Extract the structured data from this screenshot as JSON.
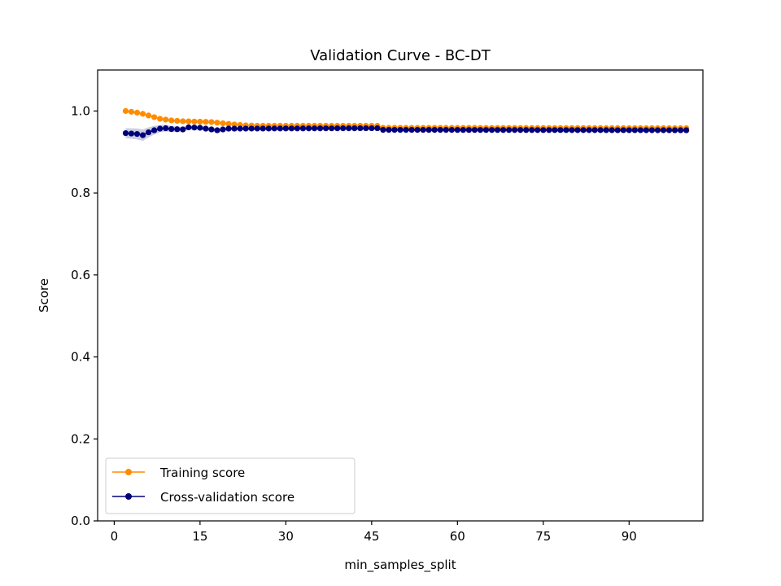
{
  "chart_data": {
    "type": "line",
    "title": "Validation Curve - BC-DT",
    "xlabel": "min_samples_split",
    "ylabel": "Score",
    "xlim": [
      -2.9,
      102.9
    ],
    "ylim": [
      0.0,
      1.1
    ],
    "xticks": [
      0,
      15,
      30,
      45,
      60,
      75,
      90
    ],
    "yticks": [
      0.0,
      0.2,
      0.4,
      0.6,
      0.8,
      1.0
    ],
    "xtick_labels": [
      "0",
      "15",
      "30",
      "45",
      "60",
      "75",
      "90"
    ],
    "ytick_labels": [
      "0.0",
      "0.2",
      "0.4",
      "0.6",
      "0.8",
      "1.0"
    ],
    "grid": false,
    "legend_position": "lower-left",
    "x_range": {
      "start": 2,
      "end": 100,
      "step": 1
    },
    "series": [
      {
        "name": "Training score",
        "color": "#ff8c00",
        "points": [
          [
            2,
            1.0
          ],
          [
            3,
            0.998
          ],
          [
            4,
            0.996
          ],
          [
            5,
            0.993
          ],
          [
            6,
            0.989
          ],
          [
            7,
            0.985
          ],
          [
            8,
            0.981
          ],
          [
            9,
            0.979
          ],
          [
            10,
            0.977
          ],
          [
            12,
            0.975
          ],
          [
            15,
            0.974
          ],
          [
            17,
            0.973
          ],
          [
            19,
            0.97
          ],
          [
            21,
            0.967
          ],
          [
            23,
            0.965
          ],
          [
            25,
            0.964
          ],
          [
            46,
            0.964
          ],
          [
            47,
            0.959
          ],
          [
            100,
            0.958
          ]
        ],
        "band": [
          [
            2,
            0.0015
          ],
          [
            8,
            0.002
          ],
          [
            20,
            0.002
          ],
          [
            100,
            0.0015
          ]
        ]
      },
      {
        "name": "Cross-validation score",
        "color": "#00007a",
        "points": [
          [
            2,
            0.946
          ],
          [
            3,
            0.945
          ],
          [
            4,
            0.944
          ],
          [
            5,
            0.941
          ],
          [
            6,
            0.948
          ],
          [
            7,
            0.953
          ],
          [
            8,
            0.957
          ],
          [
            9,
            0.958
          ],
          [
            10,
            0.956
          ],
          [
            12,
            0.955
          ],
          [
            13,
            0.96
          ],
          [
            15,
            0.959
          ],
          [
            16,
            0.957
          ],
          [
            17,
            0.955
          ],
          [
            18,
            0.953
          ],
          [
            19,
            0.955
          ],
          [
            20,
            0.957
          ],
          [
            21,
            0.957
          ],
          [
            46,
            0.958
          ],
          [
            47,
            0.954
          ],
          [
            100,
            0.953
          ]
        ],
        "band": [
          [
            2,
            0.012
          ],
          [
            5,
            0.014
          ],
          [
            8,
            0.009
          ],
          [
            12,
            0.006
          ],
          [
            20,
            0.004
          ],
          [
            46,
            0.004
          ],
          [
            47,
            0.003
          ],
          [
            100,
            0.003
          ]
        ]
      }
    ]
  }
}
